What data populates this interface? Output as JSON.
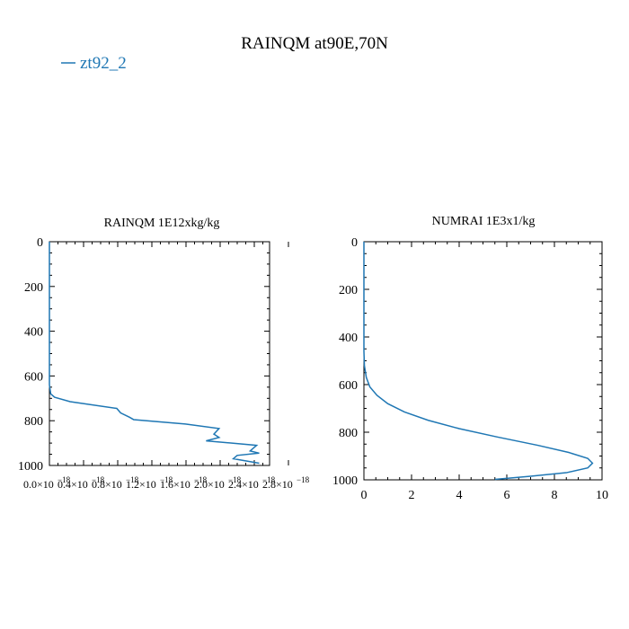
{
  "figure": {
    "title": "RAINQM at90E,70N",
    "legend": {
      "label": "zt92_2",
      "color": "#1f77b4"
    }
  },
  "chart_data": [
    {
      "type": "line",
      "title": "RAINQM  1E12xkg/kg",
      "xlabel": "",
      "ylabel": "",
      "xlim": [
        0.0,
        1.7e-18
      ],
      "ylim": [
        1000,
        0
      ],
      "y_inverted": true,
      "x_tick_labels": [
        "0.0×10",
        "0.4×10",
        "0.8×10",
        "1.2×10",
        "1.6×10",
        "2.0×10",
        "2.4×10",
        "2.8×10"
      ],
      "x_tick_exponent": "−18",
      "y_ticks": [
        0,
        200,
        400,
        600,
        800,
        1000
      ],
      "grid": false,
      "series": [
        {
          "name": "zt92_2",
          "color": "#1f77b4",
          "x": [
            0.0,
            0.0,
            0.0,
            0.0,
            0.0,
            3e-23,
            1e-20,
            4e-20,
            1.6e-19,
            5.2e-19,
            5.5e-19,
            6.2e-19,
            6.5e-19,
            1.05e-18,
            1.31e-18,
            1.27e-18,
            1.31e-18,
            1.21e-18,
            1.6e-18,
            1.55e-18,
            1.62e-18,
            1.45e-18,
            1.42e-18,
            1.62e-18
          ],
          "y": [
            0,
            200,
            400,
            560,
            600,
            640,
            680,
            695,
            715,
            745,
            765,
            785,
            795,
            815,
            835,
            860,
            875,
            890,
            910,
            935,
            945,
            955,
            970,
            990
          ]
        }
      ]
    },
    {
      "type": "line",
      "title": "NUMRAI  1E3x1/kg",
      "xlabel": "",
      "ylabel": "",
      "xlim": [
        0,
        10
      ],
      "ylim": [
        1000,
        0
      ],
      "y_inverted": true,
      "x_ticks": [
        0,
        2,
        4,
        6,
        8,
        10
      ],
      "y_ticks": [
        0,
        200,
        400,
        600,
        800,
        1000
      ],
      "grid": false,
      "series": [
        {
          "name": "zt92_2",
          "color": "#1f77b4",
          "x": [
            0.0,
            0.0,
            0.02,
            0.1,
            0.25,
            0.55,
            1.0,
            1.7,
            2.7,
            4.0,
            5.6,
            7.3,
            8.6,
            9.4,
            9.6,
            9.4,
            8.5,
            7.0,
            5.5
          ],
          "y": [
            0,
            460,
            520,
            570,
            610,
            645,
            680,
            715,
            750,
            785,
            820,
            855,
            885,
            910,
            930,
            950,
            970,
            985,
            998
          ]
        }
      ]
    }
  ]
}
